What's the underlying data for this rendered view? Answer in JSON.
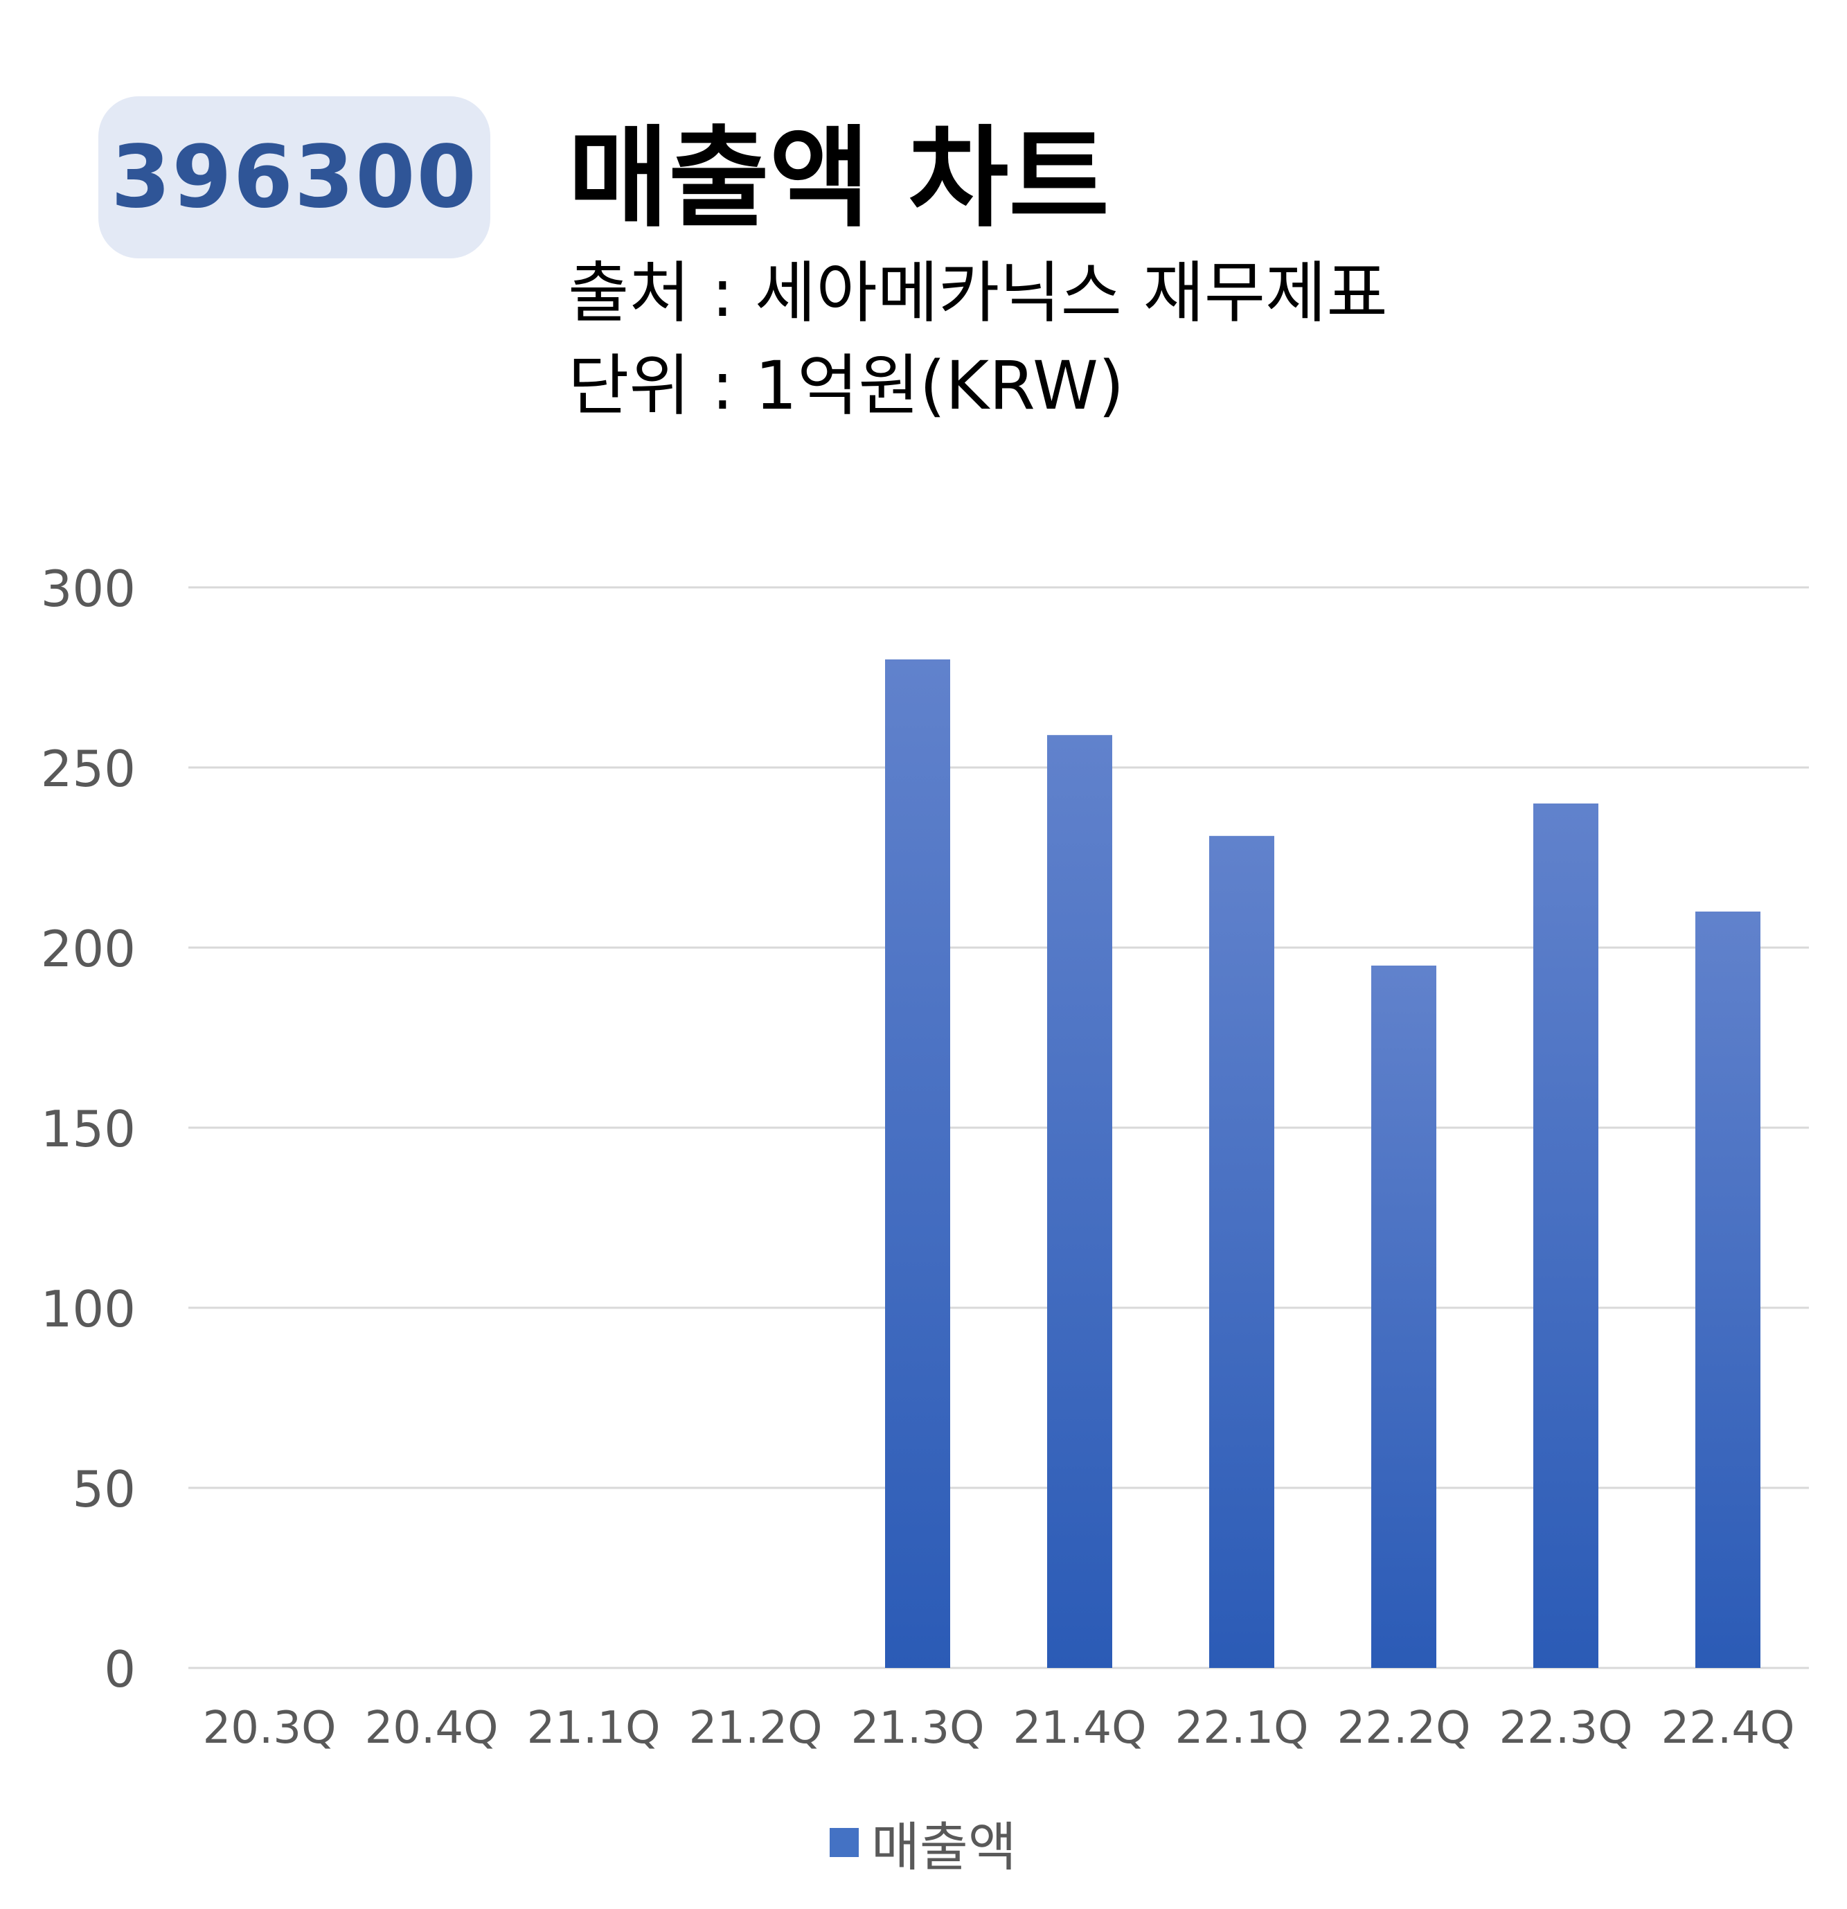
{
  "badge": {
    "code": "396300"
  },
  "header": {
    "title": "매출액 차트",
    "source": "출처 : 세아메카닉스 재무제표",
    "unit": "단위 : 1억원(KRW)"
  },
  "chart_data": {
    "type": "bar",
    "title": "매출액 차트",
    "categories": [
      "20.3Q",
      "20.4Q",
      "21.1Q",
      "21.2Q",
      "21.3Q",
      "21.4Q",
      "22.1Q",
      "22.2Q",
      "22.3Q",
      "22.4Q"
    ],
    "series": [
      {
        "name": "매출액",
        "values": [
          0,
          0,
          0,
          0,
          280,
          259,
          231,
          195,
          240,
          210
        ]
      }
    ],
    "xlabel": "",
    "ylabel": "",
    "ylim": [
      0,
      300
    ],
    "yticks": [
      0,
      50,
      100,
      150,
      200,
      250,
      300
    ],
    "grid": true,
    "legend_position": "bottom"
  },
  "colors": {
    "bar_top": "#6182cc",
    "bar_bottom": "#2b5bb6",
    "grid": "#d9d9d9",
    "tick_text": "#595959",
    "badge_bg": "#e3e9f5",
    "badge_text": "#2f5597"
  }
}
